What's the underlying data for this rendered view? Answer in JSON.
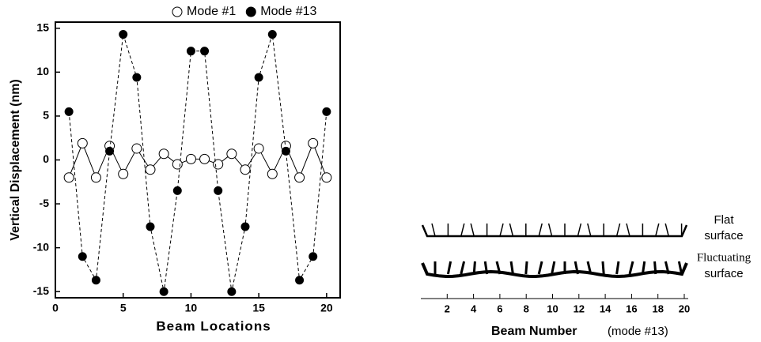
{
  "chart_data": [
    {
      "type": "line",
      "xlabel": "Beam Locations",
      "ylabel": "Vertical Displacement (nm)",
      "x": [
        1,
        2,
        3,
        4,
        5,
        6,
        7,
        8,
        9,
        10,
        11,
        12,
        13,
        14,
        15,
        16,
        17,
        18,
        19,
        20
      ],
      "series": [
        {
          "name": "Mode #1",
          "color": "#000000",
          "marker": "open",
          "linestyle": "solid",
          "values": [
            -2,
            1.9,
            -2,
            1.6,
            -1.6,
            1.3,
            -1.1,
            0.7,
            -0.5,
            0.1,
            0.1,
            -0.5,
            0.7,
            -1.1,
            1.3,
            -1.6,
            1.6,
            -2,
            1.9,
            -2
          ]
        },
        {
          "name": "Mode #13",
          "color": "#000000",
          "marker": "filled",
          "linestyle": "dashed",
          "values": [
            5.5,
            -11,
            -13.7,
            1,
            14.3,
            9.4,
            -7.6,
            -15,
            -3.5,
            12.4,
            12.4,
            -3.5,
            -15,
            -7.6,
            9.4,
            14.3,
            1,
            -13.7,
            -11,
            5.5
          ]
        }
      ],
      "xlim": [
        0,
        21
      ],
      "xticks": [
        0,
        5,
        10,
        15,
        20
      ],
      "ylim": [
        -15.7,
        15.7
      ],
      "yticks": [
        -15,
        -10,
        -5,
        0,
        5,
        10,
        15
      ],
      "legend": "top"
    },
    {
      "type": "diagram",
      "xlabel": "Beam Number",
      "xlabel_note": "(mode #13)",
      "xlim": [
        0,
        20.3
      ],
      "xticks": [
        2,
        4,
        6,
        8,
        10,
        12,
        14,
        16,
        18,
        20
      ],
      "surfaces": [
        {
          "label": [
            "Flat",
            "surface"
          ],
          "style": "flat"
        },
        {
          "label": [
            "Fluctuating",
            "surface"
          ],
          "style": "fluctuating"
        }
      ]
    }
  ]
}
